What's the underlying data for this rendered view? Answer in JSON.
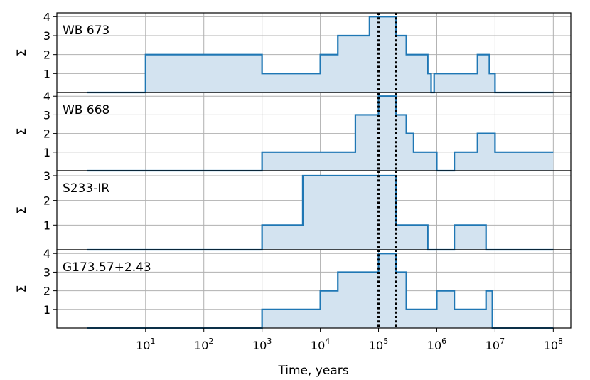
{
  "chart_data": {
    "type": "step",
    "xscale": "log",
    "xlim": [
      0.3,
      200000000
    ],
    "xlabel": "Time, years",
    "ylabel": "Σ",
    "x_ticks": [
      {
        "value": 10,
        "base": "10",
        "exp": "1"
      },
      {
        "value": 100,
        "base": "10",
        "exp": "2"
      },
      {
        "value": 1000,
        "base": "10",
        "exp": "3"
      },
      {
        "value": 10000,
        "base": "10",
        "exp": "4"
      },
      {
        "value": 100000,
        "base": "10",
        "exp": "5"
      },
      {
        "value": 1000000,
        "base": "10",
        "exp": "6"
      },
      {
        "value": 10000000,
        "base": "10",
        "exp": "7"
      },
      {
        "value": 100000000,
        "base": "10",
        "exp": "8"
      }
    ],
    "vlines": [
      100000,
      200000
    ],
    "grid": true,
    "line_color": "#1f77b4",
    "fill_color": "#d3e3f0",
    "panels": [
      {
        "label": "WB 673",
        "ylim": [
          0,
          4.2
        ],
        "yticks": [
          1,
          2,
          3,
          4
        ],
        "steps": [
          [
            1,
            0
          ],
          [
            10,
            2
          ],
          [
            1000,
            1
          ],
          [
            10000,
            2
          ],
          [
            20000,
            3
          ],
          [
            70000,
            4
          ],
          [
            200000,
            3
          ],
          [
            300000,
            2
          ],
          [
            700000,
            1
          ],
          [
            800000,
            0
          ],
          [
            900000,
            1
          ],
          [
            5000000,
            2
          ],
          [
            8000000,
            1
          ],
          [
            10000000,
            0
          ],
          [
            100000000,
            0
          ]
        ]
      },
      {
        "label": "WB 668",
        "ylim": [
          0,
          4.2
        ],
        "yticks": [
          1,
          2,
          3,
          4
        ],
        "steps": [
          [
            1,
            0
          ],
          [
            1000,
            1
          ],
          [
            40000,
            3
          ],
          [
            100000,
            4
          ],
          [
            200000,
            3
          ],
          [
            300000,
            2
          ],
          [
            400000,
            1
          ],
          [
            1000000,
            0
          ],
          [
            2000000,
            1
          ],
          [
            5000000,
            2
          ],
          [
            10000000,
            1
          ],
          [
            100000000,
            1
          ]
        ]
      },
      {
        "label": "S233-IR",
        "ylim": [
          0,
          3.2
        ],
        "yticks": [
          1,
          2,
          3
        ],
        "steps": [
          [
            1,
            0
          ],
          [
            1000,
            1
          ],
          [
            5000,
            3
          ],
          [
            200000,
            1
          ],
          [
            700000,
            0
          ],
          [
            2000000,
            1
          ],
          [
            7000000,
            0
          ],
          [
            100000000,
            0
          ]
        ]
      },
      {
        "label": "G173.57+2.43",
        "ylim": [
          0,
          4.2
        ],
        "yticks": [
          1,
          2,
          3,
          4
        ],
        "steps": [
          [
            1,
            0
          ],
          [
            1000,
            1
          ],
          [
            10000,
            2
          ],
          [
            20000,
            3
          ],
          [
            100000,
            4
          ],
          [
            200000,
            3
          ],
          [
            300000,
            1
          ],
          [
            1000000,
            2
          ],
          [
            2000000,
            1
          ],
          [
            7000000,
            2
          ],
          [
            9000000,
            0
          ],
          [
            100000000,
            0
          ]
        ]
      }
    ]
  }
}
